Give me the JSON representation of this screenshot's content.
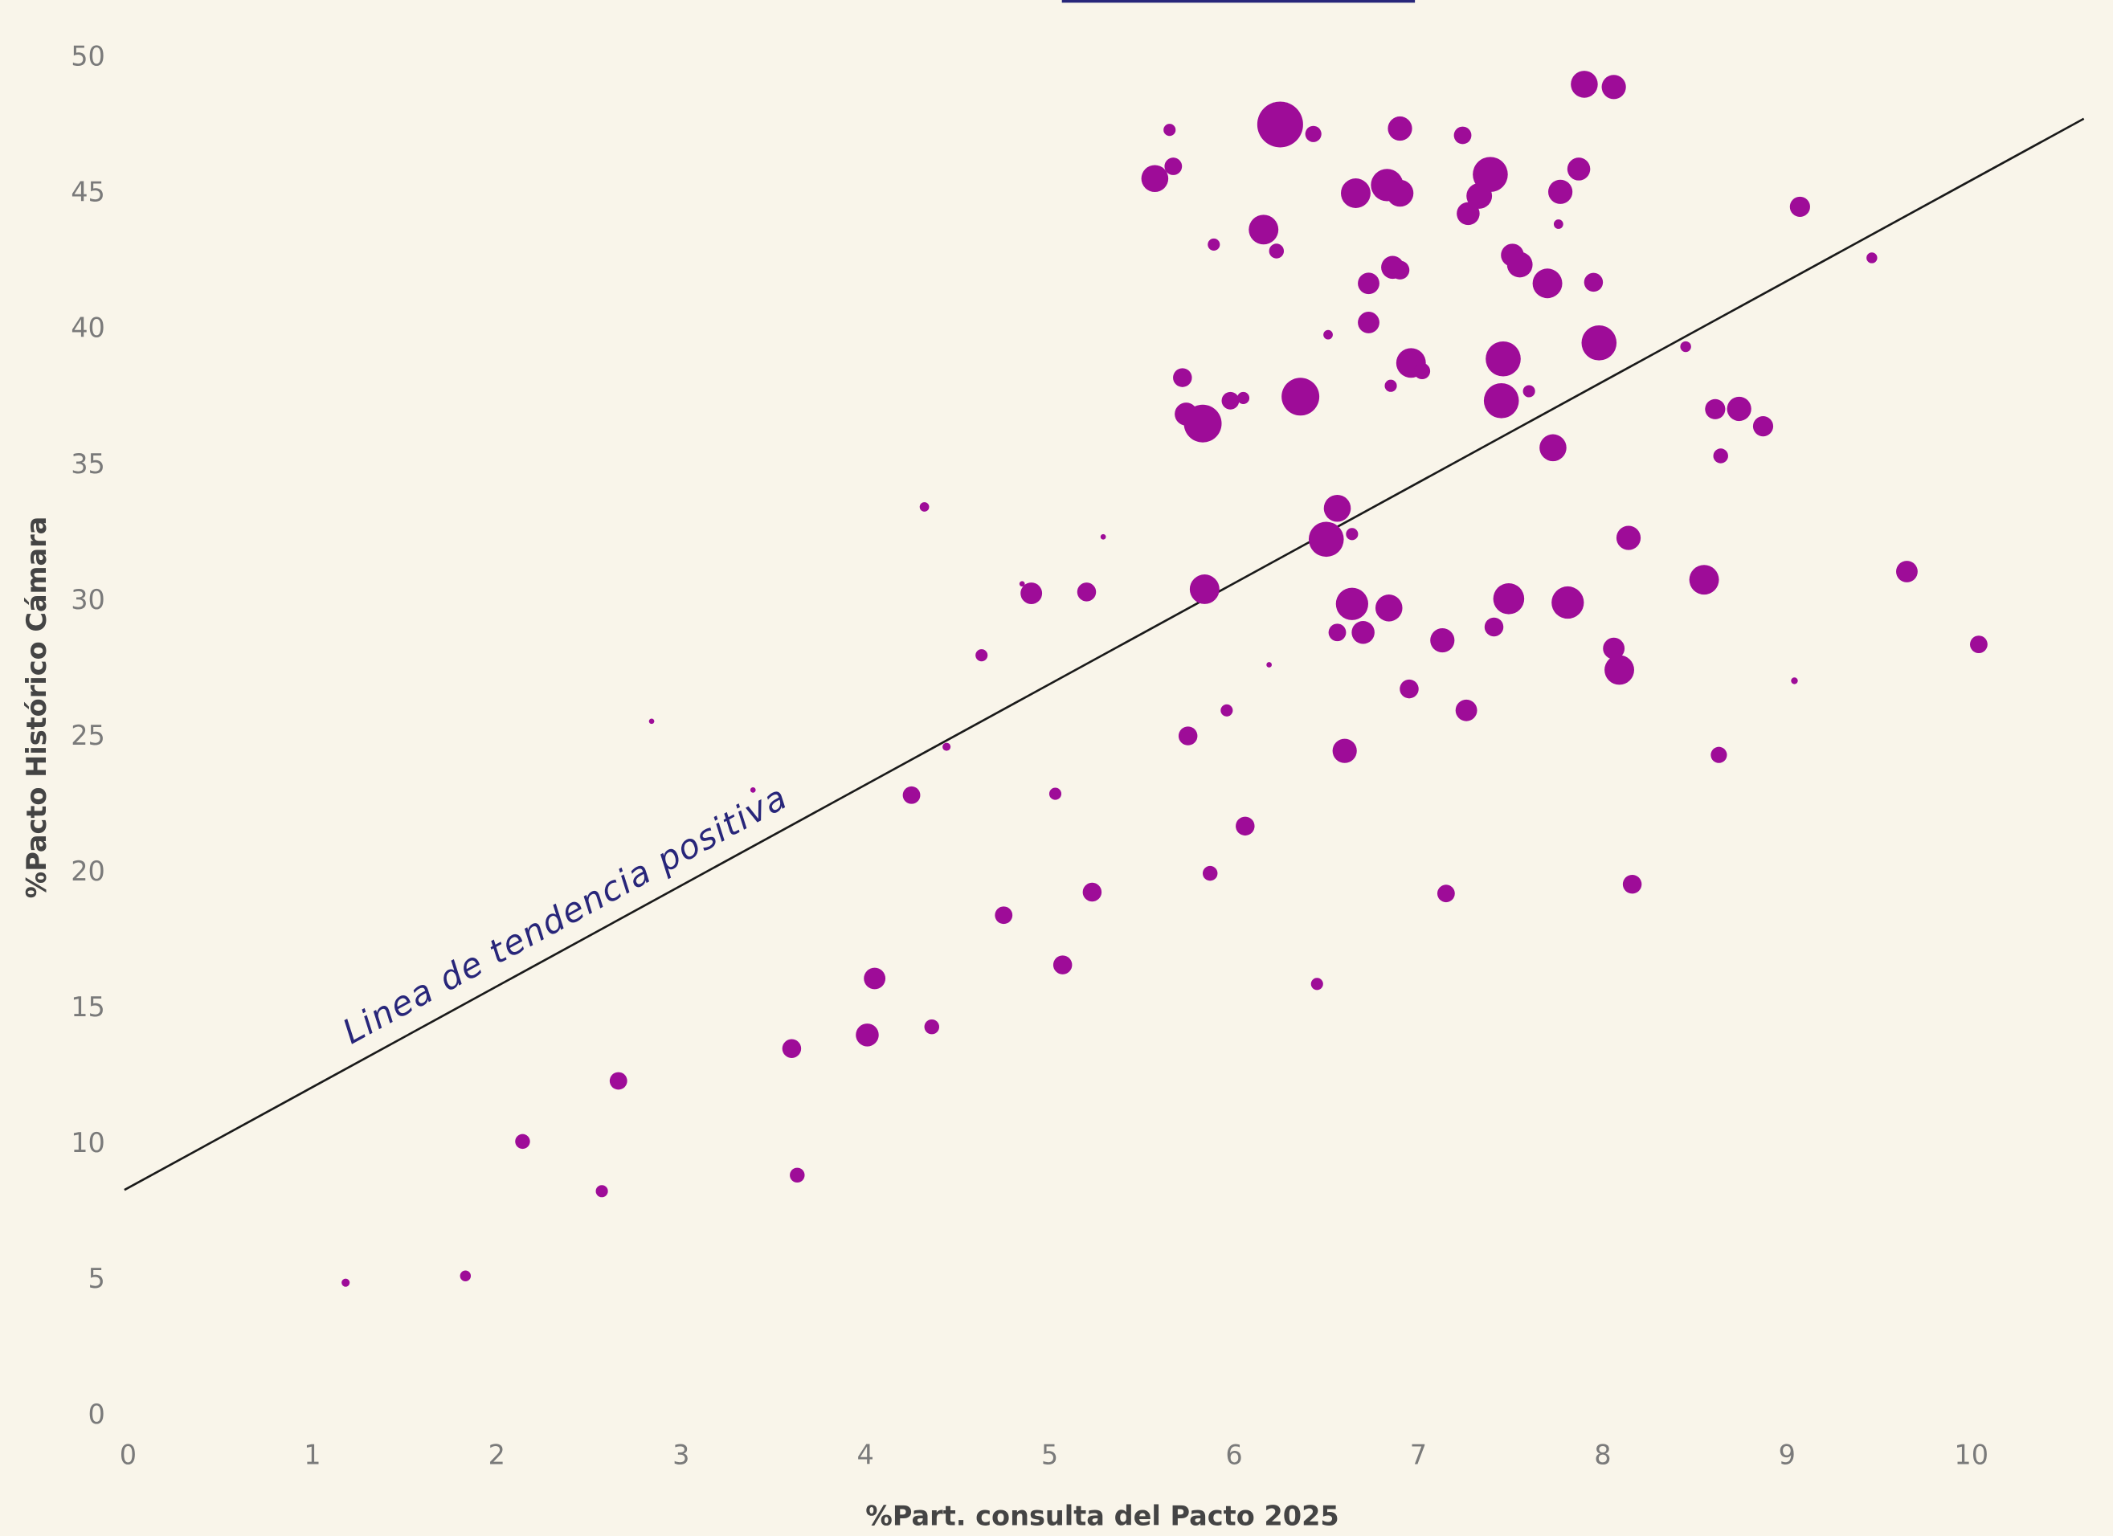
{
  "chart_data": {
    "type": "scatter",
    "x_label": "%Part. consulta del Pacto 2025",
    "y_label": "%Pacto Histórico Cámara",
    "annotation": "Linea de tendencia positiva",
    "color": "#9e0c98",
    "trend_color": "#1a1a1a",
    "trend": {
      "intercept": 8.4,
      "slope": 3.71
    },
    "xlim": [
      -0.02,
      10.61
    ],
    "ylim": [
      0,
      50
    ],
    "xticks": [
      0,
      1,
      2,
      3,
      4,
      5,
      6,
      7,
      8,
      9,
      10
    ],
    "yticks": [
      0,
      5,
      10,
      15,
      20,
      25,
      30,
      35,
      40,
      45,
      50
    ],
    "grid": false,
    "x": [
      1.18,
      1.83,
      2.14,
      2.57,
      2.66,
      2.84,
      3.39,
      3.6,
      3.63,
      4.01,
      4.05,
      4.25,
      4.32,
      4.36,
      4.44,
      4.63,
      4.75,
      4.85,
      4.9,
      5.03,
      5.07,
      5.2,
      5.23,
      5.29,
      5.57,
      5.65,
      5.67,
      5.72,
      5.74,
      5.75,
      5.83,
      5.84,
      5.87,
      5.89,
      5.96,
      5.98,
      6.05,
      6.06,
      6.16,
      6.19,
      6.23,
      6.25,
      6.36,
      6.43,
      6.45,
      6.5,
      6.51,
      6.56,
      6.56,
      6.6,
      6.64,
      6.64,
      6.66,
      6.7,
      6.73,
      6.73,
      6.83,
      6.85,
      6.86,
      6.9,
      6.9,
      6.84,
      6.9,
      6.95,
      6.96,
      7.02,
      7.13,
      7.15,
      7.24,
      7.26,
      7.27,
      7.33,
      7.39,
      7.41,
      7.46,
      7.45,
      7.49,
      7.51,
      7.55,
      7.6,
      7.7,
      7.73,
      7.76,
      7.77,
      7.81,
      7.87,
      7.9,
      7.95,
      7.98,
      8.06,
      8.06,
      8.09,
      8.14,
      8.16,
      8.45,
      8.55,
      8.61,
      8.63,
      8.64,
      8.74,
      8.87,
      9.04,
      9.07,
      9.46,
      9.65,
      10.04
    ],
    "values": [
      4.91,
      5.16,
      10.11,
      8.28,
      12.34,
      25.58,
      23.05,
      13.53,
      8.87,
      14.03,
      16.11,
      22.86,
      33.47,
      14.33,
      24.64,
      28.01,
      18.44,
      30.64,
      30.29,
      22.91,
      16.61,
      30.34,
      19.29,
      32.37,
      45.56,
      47.35,
      46.01,
      38.23,
      36.89,
      25.04,
      36.54,
      30.44,
      19.98,
      43.13,
      25.98,
      37.38,
      37.48,
      21.72,
      43.68,
      27.66,
      42.89,
      47.55,
      37.53,
      47.2,
      15.91,
      32.28,
      39.81,
      33.42,
      28.85,
      24.49,
      29.9,
      32.47,
      45.02,
      28.85,
      41.7,
      40.26,
      45.32,
      37.93,
      42.29,
      45.02,
      42.19,
      29.75,
      47.4,
      26.77,
      38.77,
      38.47,
      28.56,
      19.24,
      47.15,
      25.98,
      44.27,
      44.92,
      45.71,
      29.05,
      38.92,
      37.38,
      30.09,
      42.74,
      42.39,
      37.73,
      41.7,
      35.65,
      43.88,
      45.07,
      29.95,
      45.91,
      49.03,
      41.74,
      39.51,
      48.93,
      28.26,
      27.47,
      32.33,
      19.58,
      39.37,
      30.79,
      37.07,
      24.34,
      35.35,
      37.08,
      36.44,
      27.07,
      44.52,
      42.64,
      31.09,
      28.41
    ],
    "sizes": [
      3,
      4,
      5.5,
      4.5,
      6.5,
      2,
      2,
      7,
      5.5,
      8.5,
      8,
      6.5,
      3.5,
      5.5,
      3,
      4.5,
      6.5,
      2,
      8,
      4.5,
      7,
      7,
      7,
      2,
      10,
      4.5,
      6.5,
      7,
      8.5,
      7,
      14,
      11,
      5.5,
      4.5,
      4.5,
      6.5,
      4.5,
      7,
      11,
      2,
      5.5,
      17,
      14,
      6,
      4.5,
      13,
      3.5,
      10,
      6.5,
      9,
      12,
      4.5,
      11,
      8.5,
      8,
      8,
      12,
      4.5,
      8.5,
      10,
      7,
      10,
      9,
      7,
      11,
      6,
      9,
      6.5,
      6.5,
      8,
      8.5,
      9.5,
      13,
      7,
      13,
      13,
      11.5,
      8.5,
      9.5,
      4.5,
      11,
      10,
      3.5,
      9,
      12,
      8.5,
      10,
      7,
      13,
      9,
      8,
      11,
      9,
      7,
      4,
      11,
      7.5,
      6,
      5.5,
      9,
      7.5,
      2.5,
      7.5,
      4,
      8,
      6.5
    ]
  }
}
